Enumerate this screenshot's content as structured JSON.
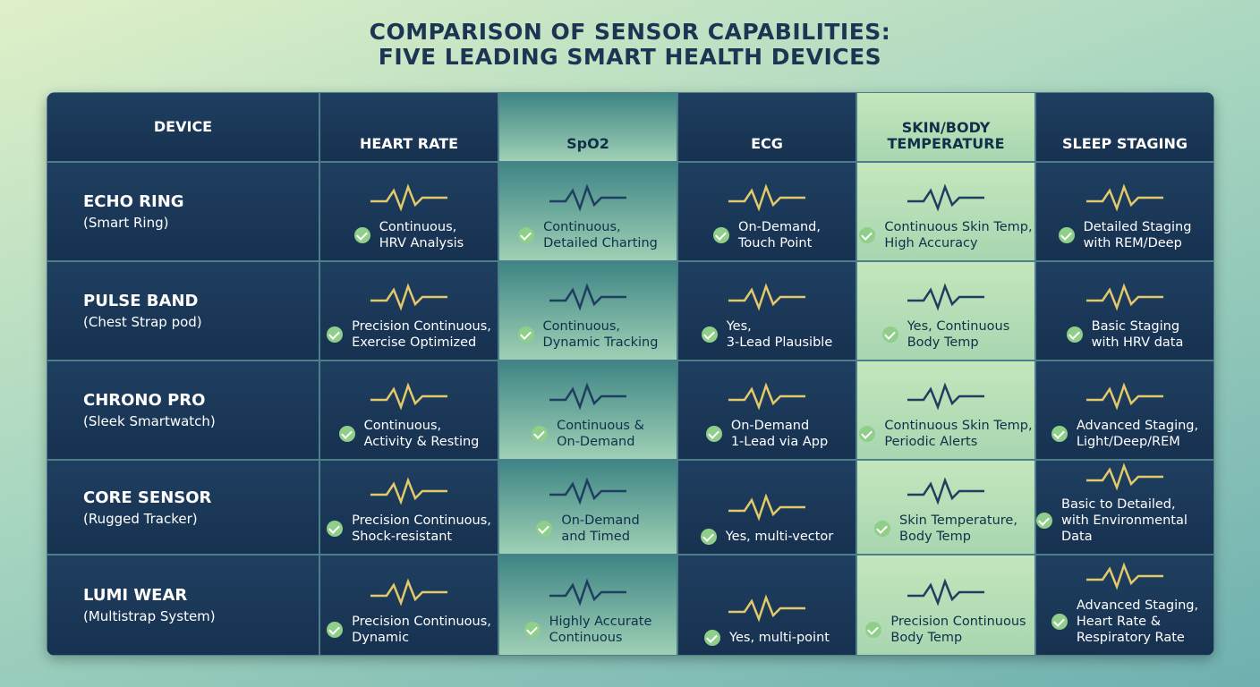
{
  "header": {
    "title": [
      "COMPARISON OF SENSOR CAPABILITIES:",
      "FIVE LEADING SMART HEALTH DEVICES"
    ]
  },
  "table": {
    "columns": [
      "DEVICE",
      "HEART RATE",
      "SpO2",
      "ECG",
      "SKIN/BODY TEMPERATURE",
      "SLEEP STAGING"
    ],
    "rows": [
      {
        "device": "ECHO RING",
        "type": "(Smart Ring)",
        "cells": [
          [
            "Continuous,",
            "HRV Analysis"
          ],
          [
            "Continuous,",
            "Detailed Charting"
          ],
          [
            "On-Demand,",
            "Touch Point"
          ],
          [
            "Continuous Skin Temp,",
            "High Accuracy"
          ],
          [
            "Detailed Staging",
            "with REM/Deep"
          ]
        ]
      },
      {
        "device": "PULSE BAND",
        "type": "(Chest Strap pod)",
        "cells": [
          [
            "Precision Continuous,",
            "Exercise Optimized"
          ],
          [
            "Continuous,",
            "Dynamic Tracking"
          ],
          [
            "Yes,",
            "3-Lead Plausible"
          ],
          [
            "Yes, Continuous",
            "Body Temp"
          ],
          [
            "Basic Staging",
            "with HRV data"
          ]
        ]
      },
      {
        "device": "CHRONO PRO",
        "type": "(Sleek Smartwatch)",
        "cells": [
          [
            "Continuous,",
            "Activity & Resting"
          ],
          [
            "Continuous &",
            "On-Demand"
          ],
          [
            "On-Demand",
            "1-Lead via App"
          ],
          [
            "Continuous Skin Temp,",
            "Periodic Alerts"
          ],
          [
            "Advanced Staging,",
            "Light/Deep/REM"
          ]
        ]
      },
      {
        "device": "CORE SENSOR",
        "type": "(Rugged Tracker)",
        "cells": [
          [
            "Precision Continuous,",
            "Shock-resistant"
          ],
          [
            "On-Demand",
            "and Timed"
          ],
          [
            "Yes, multi-vector"
          ],
          [
            "Skin Temperature,",
            "Body Temp"
          ],
          [
            "Basic to Detailed,",
            "with Environmental Data"
          ]
        ]
      },
      {
        "device": "LUMI WEAR",
        "type": "(Multistrap System)",
        "cells": [
          [
            "Precision Continuous,",
            "Dynamic"
          ],
          [
            "Highly Accurate",
            "Continuous"
          ],
          [
            "Yes, multi-point"
          ],
          [
            "Precision Continuous",
            "Body Temp"
          ],
          [
            "Advanced Staging,",
            "Heart Rate &",
            "Respiratory Rate"
          ]
        ]
      }
    ]
  }
}
